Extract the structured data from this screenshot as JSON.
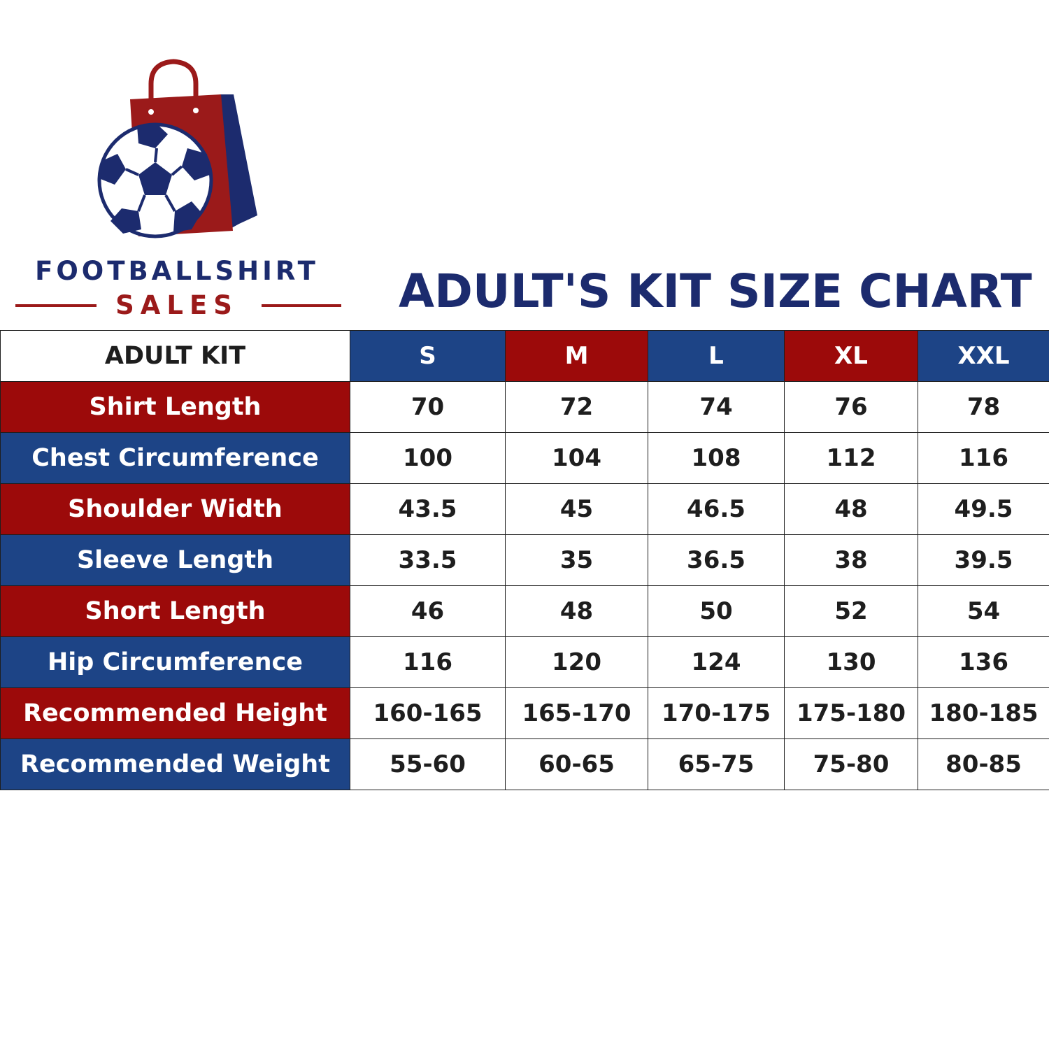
{
  "brand": {
    "line1": "FOOTBALLSHIRT",
    "line2": "SALES",
    "colors": {
      "navy": "#1c2b6e",
      "red": "#9b1a1a"
    },
    "logo_icon": "shopping-bag-with-football"
  },
  "title": "ADULT'S KIT SIZE CHART",
  "table": {
    "corner_label": "ADULT KIT",
    "sizes": [
      {
        "label": "S",
        "color": "blue"
      },
      {
        "label": "M",
        "color": "red"
      },
      {
        "label": "L",
        "color": "blue"
      },
      {
        "label": "XL",
        "color": "red"
      },
      {
        "label": "XXL",
        "color": "blue"
      }
    ],
    "rows": [
      {
        "label": "Shirt Length",
        "color": "red",
        "values": [
          "70",
          "72",
          "74",
          "76",
          "78"
        ]
      },
      {
        "label": "Chest Circumference",
        "color": "blue",
        "values": [
          "100",
          "104",
          "108",
          "112",
          "116"
        ]
      },
      {
        "label": "Shoulder Width",
        "color": "red",
        "values": [
          "43.5",
          "45",
          "46.5",
          "48",
          "49.5"
        ]
      },
      {
        "label": "Sleeve Length",
        "color": "blue",
        "values": [
          "33.5",
          "35",
          "36.5",
          "38",
          "39.5"
        ]
      },
      {
        "label": "Short Length",
        "color": "red",
        "values": [
          "46",
          "48",
          "50",
          "52",
          "54"
        ]
      },
      {
        "label": "Hip Circumference",
        "color": "blue",
        "values": [
          "116",
          "120",
          "124",
          "130",
          "136"
        ]
      },
      {
        "label": "Recommended Height",
        "color": "red",
        "values": [
          "160-165",
          "165-170",
          "170-175",
          "175-180",
          "180-185"
        ]
      },
      {
        "label": "Recommended Weight",
        "color": "blue",
        "values": [
          "55-60",
          "60-65",
          "65-75",
          "75-80",
          "80-85"
        ]
      }
    ],
    "colors": {
      "blue": "#1d4486",
      "red": "#9c0a0a"
    }
  }
}
